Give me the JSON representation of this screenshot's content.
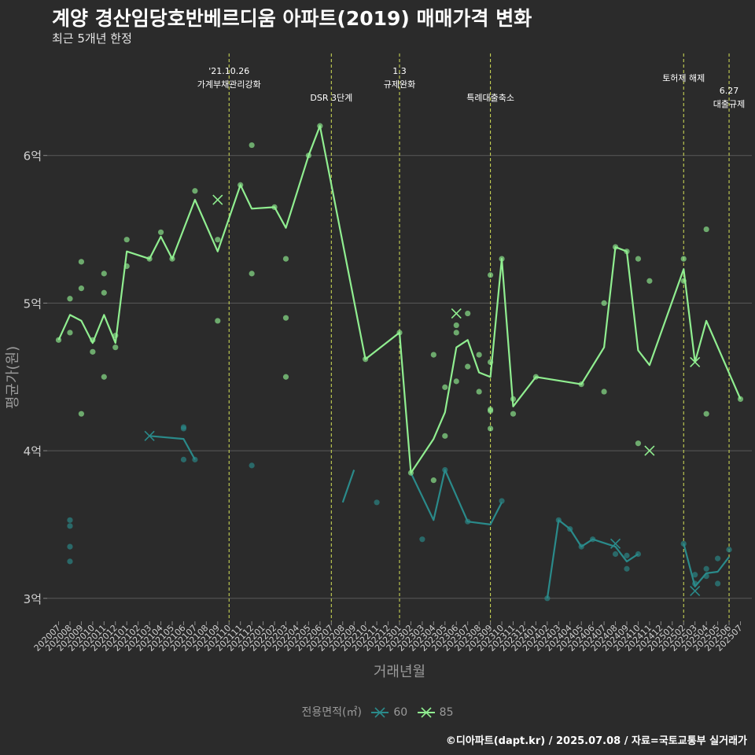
{
  "title": "계양 경산임당호반베르디움 아파트(2019) 매매가격 변화",
  "subtitle": "최근 5개년 한정",
  "caption": "©디아파트(dapt.kr) / 2025.07.08 / 자료=국토교통부 실거래가",
  "legend_title": "전용면적(㎡)",
  "colors": {
    "background": "#2b2b2b",
    "grid": "#5a5a5a",
    "s60": "#2a8a8a",
    "s85": "#90ee90",
    "vline": "#d4e157",
    "text_axis": "#9a9a9a"
  },
  "chart_data": {
    "type": "line",
    "xlabel": "거래년월",
    "ylabel": "평균가(원)",
    "categories": [
      "202007",
      "202008",
      "202009",
      "202010",
      "202011",
      "202012",
      "202101",
      "202102",
      "202103",
      "202104",
      "202105",
      "202106",
      "202107",
      "202108",
      "202109",
      "202110",
      "202111",
      "202112",
      "202201",
      "202202",
      "202203",
      "202204",
      "202205",
      "202206",
      "202207",
      "202208",
      "202209",
      "202210",
      "202211",
      "202212",
      "202301",
      "202302",
      "202303",
      "202304",
      "202305",
      "202306",
      "202307",
      "202308",
      "202309",
      "202310",
      "202311",
      "202312",
      "202401",
      "202402",
      "202403",
      "202404",
      "202405",
      "202406",
      "202407",
      "202408",
      "202409",
      "202410",
      "202411",
      "202412",
      "202501",
      "202502",
      "202503",
      "202504",
      "202505",
      "202506",
      "202507"
    ],
    "yticks": [
      {
        "value": 3.0,
        "label": "3억"
      },
      {
        "value": 4.0,
        "label": "4억"
      },
      {
        "value": 5.0,
        "label": "5억"
      },
      {
        "value": 6.0,
        "label": "6억"
      }
    ],
    "ylim": [
      2.85,
      6.75
    ],
    "grid": true,
    "legend_position": "bottom",
    "series": [
      {
        "name": "60",
        "line": [
          {
            "x": "202103",
            "y": 4.1
          },
          {
            "x": "202106",
            "y": 4.08
          },
          {
            "x": "202107",
            "y": 3.94
          },
          {
            "x": "202208",
            "y": 3.65
          },
          {
            "x": "202209",
            "y": 3.87
          },
          {
            "x": "202302",
            "y": 3.85
          },
          {
            "x": "202304",
            "y": 3.53
          },
          {
            "x": "202305",
            "y": 3.87
          },
          {
            "x": "202307",
            "y": 3.52
          },
          {
            "x": "202309",
            "y": 3.5
          },
          {
            "x": "202310",
            "y": 3.65
          },
          {
            "x": "202402",
            "y": 3.0
          },
          {
            "x": "202403",
            "y": 3.53
          },
          {
            "x": "202404",
            "y": 3.47
          },
          {
            "x": "202405",
            "y": 3.35
          },
          {
            "x": "202406",
            "y": 3.4
          },
          {
            "x": "202408",
            "y": 3.35
          },
          {
            "x": "202409",
            "y": 3.25
          },
          {
            "x": "202410",
            "y": 3.3
          },
          {
            "x": "202502",
            "y": 3.37
          },
          {
            "x": "202503",
            "y": 3.08
          },
          {
            "x": "202504",
            "y": 3.17
          },
          {
            "x": "202505",
            "y": 3.18
          },
          {
            "x": "202506",
            "y": 3.28
          }
        ],
        "points": [
          {
            "x": "202008",
            "y": 3.53
          },
          {
            "x": "202008",
            "y": 3.49
          },
          {
            "x": "202008",
            "y": 3.35
          },
          {
            "x": "202008",
            "y": 3.25
          },
          {
            "x": "202106",
            "y": 4.15
          },
          {
            "x": "202106",
            "y": 4.16
          },
          {
            "x": "202106",
            "y": 3.94
          },
          {
            "x": "202107",
            "y": 3.94
          },
          {
            "x": "202112",
            "y": 3.9
          },
          {
            "x": "202211",
            "y": 3.65
          },
          {
            "x": "202303",
            "y": 3.4
          },
          {
            "x": "202305",
            "y": 3.87
          },
          {
            "x": "202307",
            "y": 3.52
          },
          {
            "x": "202310",
            "y": 3.66
          },
          {
            "x": "202402",
            "y": 3.0
          },
          {
            "x": "202403",
            "y": 3.53
          },
          {
            "x": "202404",
            "y": 3.47
          },
          {
            "x": "202405",
            "y": 3.35
          },
          {
            "x": "202406",
            "y": 3.4
          },
          {
            "x": "202408",
            "y": 3.3
          },
          {
            "x": "202409",
            "y": 3.2
          },
          {
            "x": "202409",
            "y": 3.29
          },
          {
            "x": "202410",
            "y": 3.3
          },
          {
            "x": "202502",
            "y": 3.37
          },
          {
            "x": "202503",
            "y": 3.16
          },
          {
            "x": "202503",
            "y": 3.1
          },
          {
            "x": "202504",
            "y": 3.2
          },
          {
            "x": "202504",
            "y": 3.15
          },
          {
            "x": "202505",
            "y": 3.1
          },
          {
            "x": "202505",
            "y": 3.27
          },
          {
            "x": "202506",
            "y": 3.33
          }
        ],
        "crosses": [
          {
            "x": "202103",
            "y": 4.1
          },
          {
            "x": "202408",
            "y": 3.37
          },
          {
            "x": "202503",
            "y": 3.05
          }
        ]
      },
      {
        "name": "85",
        "line": [
          {
            "x": "202007",
            "y": 4.75
          },
          {
            "x": "202008",
            "y": 4.92
          },
          {
            "x": "202009",
            "y": 4.88
          },
          {
            "x": "202010",
            "y": 4.73
          },
          {
            "x": "202011",
            "y": 4.92
          },
          {
            "x": "202012",
            "y": 4.73
          },
          {
            "x": "202101",
            "y": 5.35
          },
          {
            "x": "202103",
            "y": 5.3
          },
          {
            "x": "202104",
            "y": 5.45
          },
          {
            "x": "202105",
            "y": 5.3
          },
          {
            "x": "202107",
            "y": 5.7
          },
          {
            "x": "202109",
            "y": 5.35
          },
          {
            "x": "202111",
            "y": 5.8
          },
          {
            "x": "202112",
            "y": 5.64
          },
          {
            "x": "202202",
            "y": 5.65
          },
          {
            "x": "202203",
            "y": 5.51
          },
          {
            "x": "202205",
            "y": 6.0
          },
          {
            "x": "202206",
            "y": 6.2
          },
          {
            "x": "202210",
            "y": 4.62
          },
          {
            "x": "202301",
            "y": 4.8
          },
          {
            "x": "202302",
            "y": 3.85
          },
          {
            "x": "202304",
            "y": 4.08
          },
          {
            "x": "202305",
            "y": 4.26
          },
          {
            "x": "202306",
            "y": 4.7
          },
          {
            "x": "202307",
            "y": 4.75
          },
          {
            "x": "202308",
            "y": 4.53
          },
          {
            "x": "202309",
            "y": 4.5
          },
          {
            "x": "202310",
            "y": 5.3
          },
          {
            "x": "202311",
            "y": 4.3
          },
          {
            "x": "202401",
            "y": 4.5
          },
          {
            "x": "202405",
            "y": 4.45
          },
          {
            "x": "202407",
            "y": 4.7
          },
          {
            "x": "202408",
            "y": 5.38
          },
          {
            "x": "202409",
            "y": 5.35
          },
          {
            "x": "202410",
            "y": 4.68
          },
          {
            "x": "202411",
            "y": 4.58
          },
          {
            "x": "202502",
            "y": 5.23
          },
          {
            "x": "202503",
            "y": 4.6
          },
          {
            "x": "202504",
            "y": 4.88
          },
          {
            "x": "202507",
            "y": 4.35
          }
        ],
        "points": [
          {
            "x": "202007",
            "y": 4.75
          },
          {
            "x": "202008",
            "y": 5.03
          },
          {
            "x": "202008",
            "y": 4.8
          },
          {
            "x": "202009",
            "y": 5.28
          },
          {
            "x": "202009",
            "y": 5.1
          },
          {
            "x": "202009",
            "y": 4.25
          },
          {
            "x": "202010",
            "y": 4.67
          },
          {
            "x": "202010",
            "y": 4.75
          },
          {
            "x": "202011",
            "y": 5.2
          },
          {
            "x": "202011",
            "y": 5.07
          },
          {
            "x": "202011",
            "y": 4.5
          },
          {
            "x": "202012",
            "y": 4.7
          },
          {
            "x": "202012",
            "y": 4.78
          },
          {
            "x": "202101",
            "y": 5.43
          },
          {
            "x": "202101",
            "y": 5.25
          },
          {
            "x": "202103",
            "y": 5.3
          },
          {
            "x": "202104",
            "y": 5.48
          },
          {
            "x": "202105",
            "y": 5.3
          },
          {
            "x": "202107",
            "y": 5.76
          },
          {
            "x": "202109",
            "y": 5.43
          },
          {
            "x": "202109",
            "y": 4.88
          },
          {
            "x": "202111",
            "y": 5.8
          },
          {
            "x": "202112",
            "y": 6.07
          },
          {
            "x": "202112",
            "y": 5.2
          },
          {
            "x": "202202",
            "y": 5.65
          },
          {
            "x": "202203",
            "y": 5.3
          },
          {
            "x": "202203",
            "y": 4.9
          },
          {
            "x": "202203",
            "y": 4.5
          },
          {
            "x": "202205",
            "y": 6.0
          },
          {
            "x": "202206",
            "y": 6.2
          },
          {
            "x": "202210",
            "y": 4.62
          },
          {
            "x": "202301",
            "y": 4.8
          },
          {
            "x": "202302",
            "y": 3.85
          },
          {
            "x": "202304",
            "y": 4.65
          },
          {
            "x": "202304",
            "y": 3.8
          },
          {
            "x": "202305",
            "y": 4.43
          },
          {
            "x": "202305",
            "y": 4.1
          },
          {
            "x": "202306",
            "y": 4.85
          },
          {
            "x": "202306",
            "y": 4.8
          },
          {
            "x": "202306",
            "y": 4.47
          },
          {
            "x": "202307",
            "y": 4.93
          },
          {
            "x": "202307",
            "y": 4.57
          },
          {
            "x": "202308",
            "y": 4.65
          },
          {
            "x": "202308",
            "y": 4.4
          },
          {
            "x": "202309",
            "y": 5.19
          },
          {
            "x": "202309",
            "y": 4.6
          },
          {
            "x": "202309",
            "y": 4.28
          },
          {
            "x": "202309",
            "y": 4.27
          },
          {
            "x": "202309",
            "y": 4.15
          },
          {
            "x": "202310",
            "y": 5.3
          },
          {
            "x": "202311",
            "y": 4.35
          },
          {
            "x": "202311",
            "y": 4.25
          },
          {
            "x": "202401",
            "y": 4.5
          },
          {
            "x": "202405",
            "y": 4.45
          },
          {
            "x": "202407",
            "y": 5.0
          },
          {
            "x": "202407",
            "y": 4.4
          },
          {
            "x": "202408",
            "y": 5.38
          },
          {
            "x": "202409",
            "y": 5.35
          },
          {
            "x": "202410",
            "y": 5.3
          },
          {
            "x": "202410",
            "y": 4.05
          },
          {
            "x": "202411",
            "y": 5.15
          },
          {
            "x": "202502",
            "y": 5.3
          },
          {
            "x": "202502",
            "y": 5.15
          },
          {
            "x": "202504",
            "y": 5.5
          },
          {
            "x": "202504",
            "y": 4.25
          },
          {
            "x": "202507",
            "y": 4.35
          }
        ],
        "crosses": [
          {
            "x": "202109",
            "y": 5.7
          },
          {
            "x": "202306",
            "y": 4.93
          },
          {
            "x": "202411",
            "y": 4.0
          },
          {
            "x": "202503",
            "y": 4.6
          }
        ]
      }
    ],
    "events": [
      {
        "x": "202110",
        "label_lines": [
          "'21.10.26",
          "가계부채관리강화"
        ],
        "label_anchor": "top"
      },
      {
        "x": "202207",
        "label_lines": [
          "DSR 3단계"
        ],
        "label_anchor": "mid"
      },
      {
        "x": "202301",
        "label_lines": [
          "1.3",
          "규제완화"
        ],
        "label_anchor": "top"
      },
      {
        "x": "202309",
        "label_lines": [
          "특례대출축소"
        ],
        "label_anchor": "mid"
      },
      {
        "x": "202502",
        "label_lines": [
          "토허제 해제"
        ],
        "label_anchor": "upper"
      },
      {
        "x": "202506",
        "label_lines": [
          "6.27",
          "대출규제"
        ],
        "label_anchor": "lower"
      }
    ]
  }
}
